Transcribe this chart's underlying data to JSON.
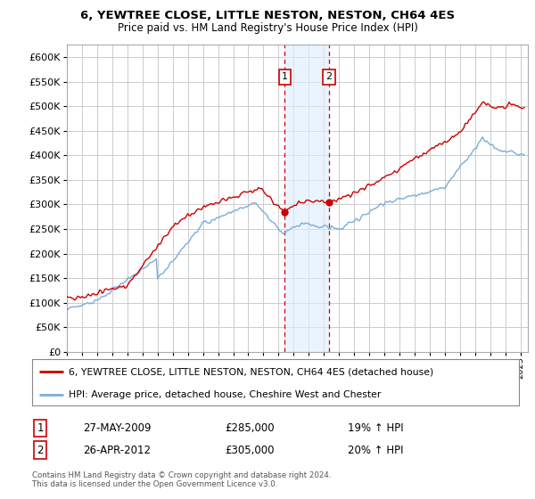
{
  "title": "6, YEWTREE CLOSE, LITTLE NESTON, NESTON, CH64 4ES",
  "subtitle": "Price paid vs. HM Land Registry's House Price Index (HPI)",
  "ylim": [
    0,
    620000
  ],
  "yticks": [
    0,
    50000,
    100000,
    150000,
    200000,
    250000,
    300000,
    350000,
    400000,
    450000,
    500000,
    550000,
    600000
  ],
  "xlim_start": 1995.0,
  "xlim_end": 2025.5,
  "background_color": "#ffffff",
  "grid_color": "#cccccc",
  "sale1_date": 2009.41,
  "sale1_price": 285000,
  "sale2_date": 2012.33,
  "sale2_price": 305000,
  "legend_line1": "6, YEWTREE CLOSE, LITTLE NESTON, NESTON, CH64 4ES (detached house)",
  "legend_line2": "HPI: Average price, detached house, Cheshire West and Chester",
  "table_row1": [
    "1",
    "27-MAY-2009",
    "£285,000",
    "19% ↑ HPI"
  ],
  "table_row2": [
    "2",
    "26-APR-2012",
    "£305,000",
    "20% ↑ HPI"
  ],
  "footer": "Contains HM Land Registry data © Crown copyright and database right 2024.\nThis data is licensed under the Open Government Licence v3.0.",
  "red_color": "#cc0000",
  "blue_color": "#7aaddb",
  "shade_color": "#ddeeff",
  "label_box_color": "#cc0000"
}
